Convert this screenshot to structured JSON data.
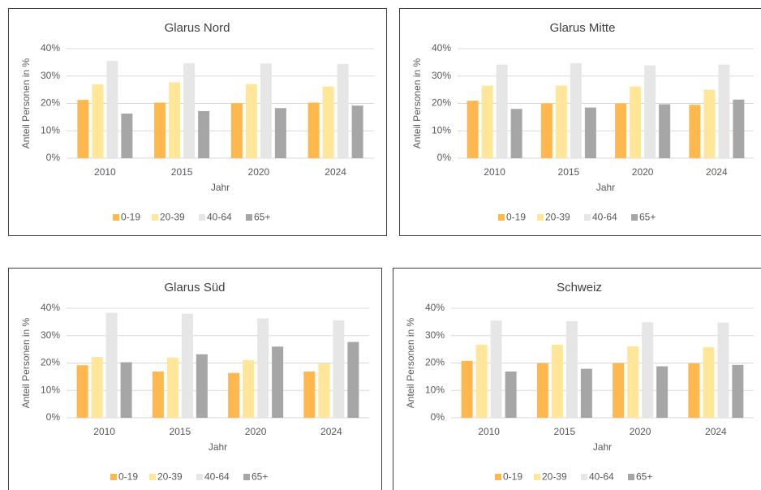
{
  "chart_data": [
    {
      "type": "bar",
      "title": "Glarus Nord",
      "x_label": "Jahr",
      "y_label": "Anteil Personen in %",
      "categories": [
        "2010",
        "2015",
        "2020",
        "2024"
      ],
      "series": [
        {
          "name": "0-19",
          "color": "#ffb84d",
          "values": [
            21.3,
            20.3,
            20.1,
            20.3
          ]
        },
        {
          "name": "20-39",
          "color": "#ffe699",
          "values": [
            27,
            27.7,
            27.1,
            26.2
          ]
        },
        {
          "name": "40-64",
          "color": "#e6e6e6",
          "values": [
            35.5,
            34.7,
            34.6,
            34.4
          ]
        },
        {
          "name": "65+",
          "color": "#a6a6a6",
          "values": [
            16.3,
            17.2,
            18.3,
            19.2
          ]
        }
      ],
      "ylim": [
        0,
        40
      ],
      "yticks": [
        {
          "value": 0,
          "label": "0%"
        },
        {
          "value": 10,
          "label": "10%"
        },
        {
          "value": 20,
          "label": "20%"
        },
        {
          "value": 30,
          "label": "30%"
        },
        {
          "value": 40,
          "label": "40%"
        }
      ],
      "grid": true
    },
    {
      "type": "bar",
      "title": "Glarus Mitte",
      "x_label": "Jahr",
      "y_label": "Anteil Personen in %",
      "categories": [
        "2010",
        "2015",
        "2020",
        "2024"
      ],
      "series": [
        {
          "name": "0-19",
          "color": "#ffb84d",
          "values": [
            21,
            20,
            20,
            19.5
          ]
        },
        {
          "name": "20-39",
          "color": "#ffe699",
          "values": [
            26.5,
            26.5,
            26.2,
            25
          ]
        },
        {
          "name": "40-64",
          "color": "#e6e6e6",
          "values": [
            34.2,
            34.7,
            33.9,
            34.2
          ]
        },
        {
          "name": "65+",
          "color": "#a6a6a6",
          "values": [
            18,
            18.5,
            19.7,
            21.4
          ]
        }
      ],
      "ylim": [
        0,
        40
      ],
      "yticks": [
        {
          "value": 0,
          "label": "0%"
        },
        {
          "value": 10,
          "label": "10%"
        },
        {
          "value": 20,
          "label": "20%"
        },
        {
          "value": 30,
          "label": "30%"
        },
        {
          "value": 40,
          "label": "40%"
        }
      ],
      "grid": true
    },
    {
      "type": "bar",
      "title": "Glarus Süd",
      "x_label": "Jahr",
      "y_label": "Anteil Personen in %",
      "categories": [
        "2010",
        "2015",
        "2020",
        "2024"
      ],
      "series": [
        {
          "name": "0-19",
          "color": "#ffb84d",
          "values": [
            19.2,
            16.9,
            16.4,
            16.9
          ]
        },
        {
          "name": "20-39",
          "color": "#ffe699",
          "values": [
            22.2,
            22,
            21.1,
            19.8
          ]
        },
        {
          "name": "40-64",
          "color": "#e6e6e6",
          "values": [
            38.3,
            38,
            36.3,
            35.6
          ]
        },
        {
          "name": "65+",
          "color": "#a6a6a6",
          "values": [
            20.3,
            23.2,
            26,
            27.7
          ]
        }
      ],
      "ylim": [
        0,
        40
      ],
      "yticks": [
        {
          "value": 0,
          "label": "0%"
        },
        {
          "value": 10,
          "label": "10%"
        },
        {
          "value": 20,
          "label": "20%"
        },
        {
          "value": 30,
          "label": "30%"
        },
        {
          "value": 40,
          "label": "40%"
        }
      ],
      "grid": true
    },
    {
      "type": "bar",
      "title": "Schweiz",
      "x_label": "Jahr",
      "y_label": "Anteil Personen in %",
      "categories": [
        "2010",
        "2015",
        "2020",
        "2024"
      ],
      "series": [
        {
          "name": "0-19",
          "color": "#ffb84d",
          "values": [
            20.8,
            20,
            20,
            19.9
          ]
        },
        {
          "name": "20-39",
          "color": "#ffe699",
          "values": [
            26.7,
            26.7,
            26.1,
            25.8
          ]
        },
        {
          "name": "40-64",
          "color": "#e6e6e6",
          "values": [
            35.5,
            35.3,
            34.9,
            34.8
          ]
        },
        {
          "name": "65+",
          "color": "#a6a6a6",
          "values": [
            16.9,
            17.9,
            18.8,
            19.3
          ]
        }
      ],
      "ylim": [
        0,
        40
      ],
      "yticks": [
        {
          "value": 0,
          "label": "0%"
        },
        {
          "value": 10,
          "label": "10%"
        },
        {
          "value": 20,
          "label": "20%"
        },
        {
          "value": 30,
          "label": "30%"
        },
        {
          "value": 40,
          "label": "40%"
        }
      ],
      "grid": true
    }
  ]
}
